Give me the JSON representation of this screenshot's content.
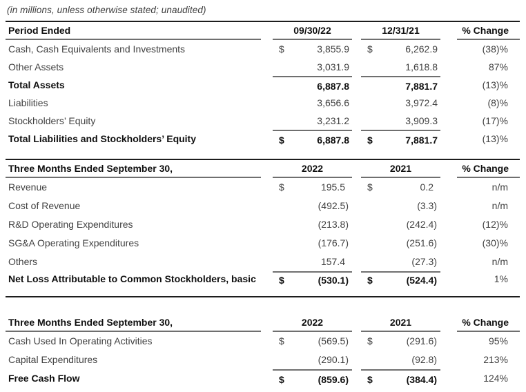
{
  "note": "(in millions, unless otherwise stated; unaudited)",
  "colors": {
    "rule_dark": "#1d1d1d",
    "rule_gray": "#6f6f6f",
    "text_regular": "#414141",
    "text_bold": "#0f0f0f",
    "background": "#ffffff"
  },
  "tables": [
    {
      "name": "balance-sheet-summary",
      "top_rule": true,
      "bottom_rule": false,
      "header": {
        "label": "Period Ended",
        "col1": "09/30/22",
        "col2": "12/31/21",
        "pct": "% Change"
      },
      "rows": [
        {
          "label": "Cash, Cash Equivalents and Investments",
          "cur1": "$",
          "val1": "3,855.9",
          "cur2": "$",
          "val2": "6,262.9",
          "pct": "(38)%",
          "bold": false,
          "topline": false,
          "tall": false
        },
        {
          "label": "Other Assets",
          "cur1": "",
          "val1": "3,031.9",
          "cur2": "",
          "val2": "1,618.8",
          "pct": "87%",
          "bold": false,
          "topline": false,
          "tall": false
        },
        {
          "label": "Total Assets",
          "cur1": "",
          "val1": "6,887.8",
          "cur2": "",
          "val2": "7,881.7",
          "pct": "(13)%",
          "bold": true,
          "topline": true,
          "tall": false
        },
        {
          "label": "Liabilities",
          "cur1": "",
          "val1": "3,656.6",
          "cur2": "",
          "val2": "3,972.4",
          "pct": "(8)%",
          "bold": false,
          "topline": false,
          "tall": false
        },
        {
          "label": "Stockholders’ Equity",
          "cur1": "",
          "val1": "3,231.2",
          "cur2": "",
          "val2": "3,909.3",
          "pct": "(17)%",
          "bold": false,
          "topline": false,
          "tall": false
        },
        {
          "label": "Total Liabilities and Stockholders’ Equity",
          "cur1": "$",
          "val1": "6,887.8",
          "cur2": "$",
          "val2": "7,881.7",
          "pct": "(13)%",
          "bold": true,
          "topline": true,
          "tall": false
        }
      ]
    },
    {
      "name": "income-statement-summary",
      "top_rule": true,
      "bottom_rule": true,
      "header": {
        "label": "Three Months Ended September 30,",
        "col1": "2022",
        "col2": "2021",
        "pct": "% Change"
      },
      "rows": [
        {
          "label": "Revenue",
          "cur1": "$",
          "val1": "195.5",
          "cur2": "$",
          "val2": "0.2",
          "pct": "n/m",
          "bold": false,
          "topline": false,
          "tall": false
        },
        {
          "label": "Cost of Revenue",
          "cur1": "",
          "val1": "(492.5)",
          "cur2": "",
          "val2": "(3.3)",
          "pct": "n/m",
          "bold": false,
          "topline": false,
          "tall": false
        },
        {
          "label": "R&D Operating Expenditures",
          "cur1": "",
          "val1": "(213.8)",
          "cur2": "",
          "val2": "(242.4)",
          "pct": "(12)%",
          "bold": false,
          "topline": false,
          "tall": false
        },
        {
          "label": "SG&A Operating Expenditures",
          "cur1": "",
          "val1": "(176.7)",
          "cur2": "",
          "val2": "(251.6)",
          "pct": "(30)%",
          "bold": false,
          "topline": false,
          "tall": false
        },
        {
          "label": "Others",
          "cur1": "",
          "val1": "157.4",
          "cur2": "",
          "val2": "(27.3)",
          "pct": "n/m",
          "bold": false,
          "topline": false,
          "tall": false
        },
        {
          "label": "Net Loss Attributable to Common Stockholders, basic",
          "cur1": "$",
          "val1": "(530.1)",
          "cur2": "$",
          "val2": "(524.4)",
          "pct": "1%",
          "bold": true,
          "topline": true,
          "tall": true
        }
      ]
    },
    {
      "name": "cash-flow-summary",
      "top_rule": false,
      "bottom_rule": false,
      "header": {
        "label": "Three Months Ended September 30,",
        "col1": "2022",
        "col2": "2021",
        "pct": "% Change"
      },
      "rows": [
        {
          "label": "Cash Used In Operating Activities",
          "cur1": "$",
          "val1": "(569.5)",
          "cur2": "$",
          "val2": "(291.6)",
          "pct": "95%",
          "bold": false,
          "topline": false,
          "tall": false
        },
        {
          "label": "Capital Expenditures",
          "cur1": "",
          "val1": "(290.1)",
          "cur2": "",
          "val2": "(92.8)",
          "pct": "213%",
          "bold": false,
          "topline": false,
          "tall": false
        },
        {
          "label": "Free Cash Flow",
          "cur1": "$",
          "val1": "(859.6)",
          "cur2": "$",
          "val2": "(384.4)",
          "pct": "124%",
          "bold": true,
          "topline": true,
          "tall": false
        }
      ]
    }
  ]
}
